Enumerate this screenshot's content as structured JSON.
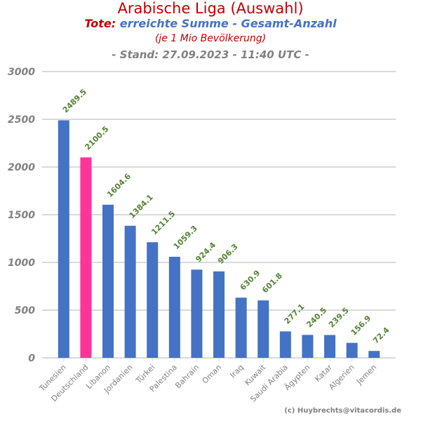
{
  "chart_data": {
    "type": "bar",
    "title": "Arabische Liga (Auswahl)",
    "subtitle_prefix": "Tote:",
    "subtitle": "erreichte Summe - Gesamt-Anzahl",
    "subtitle2": "(je 1 Mio Bevölkerung)",
    "stand": "- Stand: 27.09.2023 - 11:40 UTC -",
    "credit": "(c) Huybrechts@vitacordis.de",
    "categories": [
      "Tunesien",
      "Deutschland",
      "Libanon",
      "Jordanien",
      "Türkei",
      "Palestina",
      "Bahrain",
      "Oman",
      "Iraq",
      "Kuwait",
      "Saudi Arabia",
      "Ägypten",
      "Katar",
      "Algerien",
      "Jemen"
    ],
    "values": [
      2489.5,
      2100.5,
      1604.6,
      1384.1,
      1211.5,
      1059.3,
      924.4,
      906.3,
      630.9,
      601.8,
      277.1,
      240.5,
      239.5,
      156.9,
      72.4
    ],
    "labels": [
      "2489.5",
      "2100.5",
      "1604.6",
      "1384.1",
      "1211.5",
      "1059.3",
      "924.4",
      "906.3",
      "630.9",
      "601.8",
      "277.1",
      "240.5",
      "239.5",
      "156.9",
      "72.4"
    ],
    "highlight_index": 1,
    "yticks": [
      "0",
      "500",
      "1000",
      "1500",
      "2000",
      "2500",
      "3000"
    ],
    "ylim": [
      0,
      3000
    ],
    "grid": true,
    "colors": {
      "bar": "#4472c4",
      "highlight": "#ff3399",
      "label": "#548235",
      "grid": "#d9d9d9",
      "tick": "#808080"
    }
  }
}
